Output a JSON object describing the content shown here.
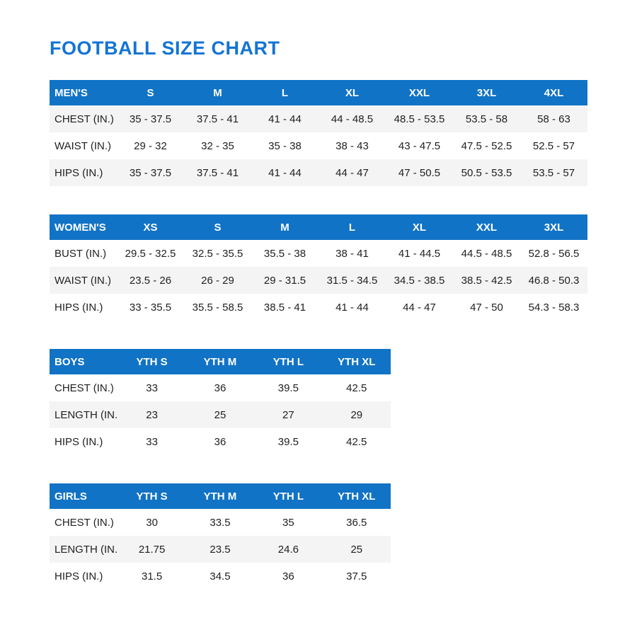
{
  "page": {
    "title": "FOOTBALL SIZE CHART"
  },
  "colors": {
    "title": "#1374d4",
    "header_bg": "#1173c5",
    "header_text": "#ffffff",
    "row_alt_bg": "#f4f4f4",
    "body_text": "#1f1f1f"
  },
  "tables": [
    {
      "name": "MEN'S",
      "wide": true,
      "columns": [
        "S",
        "M",
        "L",
        "XL",
        "XXL",
        "3XL",
        "4XL"
      ],
      "rows": [
        {
          "label": "CHEST (IN.)",
          "shaded": true,
          "values": [
            "35 - 37.5",
            "37.5 - 41",
            "41 - 44",
            "44 - 48.5",
            "48.5 - 53.5",
            "53.5 - 58",
            "58 - 63"
          ]
        },
        {
          "label": "WAIST (IN.)",
          "shaded": false,
          "values": [
            "29 - 32",
            "32 - 35",
            "35 - 38",
            "38 - 43",
            "43 - 47.5",
            "47.5 - 52.5",
            "52.5 - 57"
          ]
        },
        {
          "label": "HIPS (IN.)",
          "shaded": true,
          "values": [
            "35 - 37.5",
            "37.5 - 41",
            "41 - 44",
            "44 - 47",
            "47 - 50.5",
            "50.5 - 53.5",
            "53.5 - 57"
          ]
        }
      ]
    },
    {
      "name": "WOMEN'S",
      "wide": true,
      "columns": [
        "XS",
        "S",
        "M",
        "L",
        "XL",
        "XXL",
        "3XL"
      ],
      "rows": [
        {
          "label": "BUST (IN.)",
          "shaded": false,
          "values": [
            "29.5 - 32.5",
            "32.5 - 35.5",
            "35.5 - 38",
            "38 - 41",
            "41 - 44.5",
            "44.5 - 48.5",
            "52.8 - 56.5"
          ]
        },
        {
          "label": "WAIST (IN.)",
          "shaded": true,
          "values": [
            "23.5 - 26",
            "26 - 29",
            "29 - 31.5",
            "31.5 - 34.5",
            "34.5 - 38.5",
            "38.5 - 42.5",
            "46.8 - 50.3"
          ]
        },
        {
          "label": "HIPS (IN.)",
          "shaded": false,
          "values": [
            "33 - 35.5",
            "35.5 - 58.5",
            "38.5 - 41",
            "41 - 44",
            "44 - 47",
            "47 - 50",
            "54.3 - 58.3"
          ]
        }
      ]
    },
    {
      "name": "BOYS",
      "wide": false,
      "columns": [
        "YTH S",
        "YTH M",
        "YTH L",
        "YTH XL"
      ],
      "rows": [
        {
          "label": "CHEST (IN.)",
          "shaded": false,
          "values": [
            "33",
            "36",
            "39.5",
            "42.5"
          ]
        },
        {
          "label": "LENGTH (IN.)",
          "shaded": true,
          "values": [
            "23",
            "25",
            "27",
            "29"
          ]
        },
        {
          "label": "HIPS (IN.)",
          "shaded": false,
          "values": [
            "33",
            "36",
            "39.5",
            "42.5"
          ]
        }
      ]
    },
    {
      "name": "GIRLS",
      "wide": false,
      "columns": [
        "YTH S",
        "YTH M",
        "YTH L",
        "YTH XL"
      ],
      "rows": [
        {
          "label": "CHEST (IN.)",
          "shaded": false,
          "values": [
            "30",
            "33.5",
            "35",
            "36.5"
          ]
        },
        {
          "label": "LENGTH (IN.)",
          "shaded": true,
          "values": [
            "21.75",
            "23.5",
            "24.6",
            "25"
          ]
        },
        {
          "label": "HIPS (IN.)",
          "shaded": false,
          "values": [
            "31.5",
            "34.5",
            "36",
            "37.5"
          ]
        }
      ]
    }
  ]
}
